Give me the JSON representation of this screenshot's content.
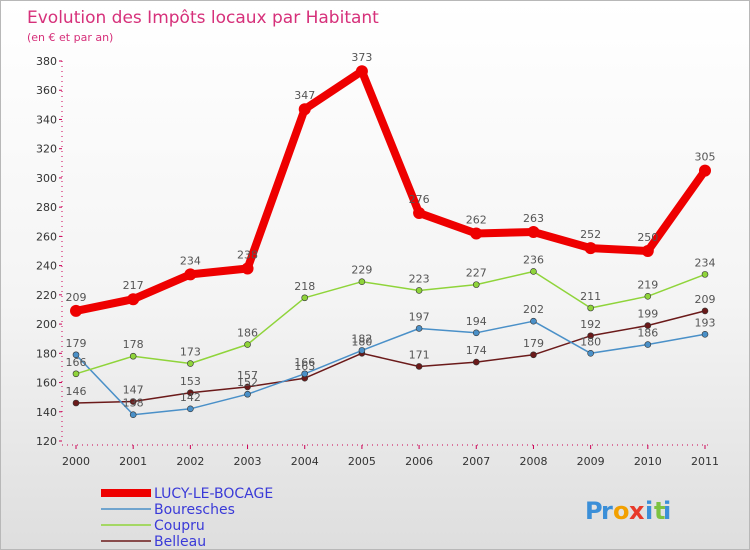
{
  "chart_data": {
    "type": "line",
    "title": "Evolution des Impôts locaux par Habitant",
    "subtitle": "(en € et par an)",
    "x": [
      "2000",
      "2001",
      "2002",
      "2003",
      "2004",
      "2005",
      "2006",
      "2007",
      "2008",
      "2009",
      "2010",
      "2011"
    ],
    "ylim": [
      120,
      380
    ],
    "yticks": [
      120,
      140,
      160,
      180,
      200,
      220,
      240,
      260,
      280,
      300,
      320,
      340,
      360,
      380
    ],
    "grid": false,
    "legend_position": "bottom-left",
    "series": [
      {
        "name": "Belleau",
        "color": "#6b1a1a",
        "values": [
          146,
          147,
          153,
          157,
          163,
          180,
          171,
          174,
          179,
          192,
          199,
          209
        ]
      },
      {
        "name": "Bouresches",
        "color": "#4a90c8",
        "values": [
          179,
          138,
          142,
          152,
          166,
          182,
          197,
          194,
          202,
          180,
          186,
          193
        ]
      },
      {
        "name": "Coupru",
        "color": "#8fd43a",
        "values": [
          166,
          178,
          173,
          186,
          218,
          229,
          223,
          227,
          236,
          211,
          219,
          234
        ]
      },
      {
        "name": "LUCY-LE-BOCAGE",
        "color": "#ee0000",
        "values": [
          209,
          217,
          234,
          238,
          347,
          373,
          276,
          262,
          263,
          252,
          250,
          305
        ]
      }
    ],
    "legend_order": [
      "LUCY-LE-BOCAGE",
      "Bouresches",
      "Coupru",
      "Belleau"
    ]
  },
  "logo": {
    "text": "Proxiti",
    "letters": [
      "P",
      "r",
      "o",
      "x",
      "i",
      "t",
      "i"
    ],
    "colors": [
      "#3b8fd8",
      "#3b8fd8",
      "#f2a000",
      "#e83a2a",
      "#3b8fd8",
      "#7cc242",
      "#3b8fd8"
    ]
  }
}
